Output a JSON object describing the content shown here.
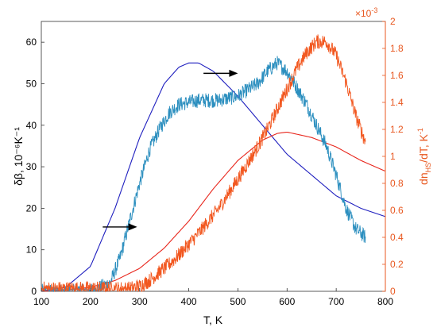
{
  "chart_data": {
    "type": "line",
    "xlabel": "T, K",
    "ylabel_left": "δβ, 10⁻⁶K⁻¹",
    "ylabel_right": "dn_HS/dT, K⁻¹",
    "ylabel_right_main": "dn",
    "ylabel_right_sub": "HS",
    "ylabel_right_tail": "/dT, K",
    "ylabel_right_sup": "-1",
    "right_axis_multiplier": "×10",
    "right_axis_multiplier_exp": "-3",
    "xlim": [
      100,
      800
    ],
    "ylim_left": [
      0,
      65
    ],
    "ylim_right": [
      0,
      2
    ],
    "x_ticks": [
      "100",
      "200",
      "300",
      "400",
      "500",
      "600",
      "700",
      "800"
    ],
    "y_left_ticks": [
      "0",
      "10",
      "20",
      "30",
      "40",
      "50",
      "60"
    ],
    "y_right_ticks": [
      "0",
      "0.2",
      "0.4",
      "0.6",
      "0.8",
      "1",
      "1.2",
      "1.4",
      "1.6",
      "1.8",
      "2"
    ],
    "colors": {
      "measured_dbeta": "#2c8fbf",
      "measured_dn": "#f2571f",
      "model_dbeta": "#1f1fbf",
      "model_dn": "#e8261c",
      "right_axis": "#e8571f",
      "arrow": "#000000"
    },
    "series": [
      {
        "axis": "left",
        "style": "noisy",
        "x": [
          100,
          200,
          240,
          260,
          280,
          300,
          320,
          340,
          360,
          380,
          400,
          420,
          440,
          460,
          480,
          500,
          520,
          540,
          560,
          580,
          600,
          620,
          640,
          660,
          680,
          700,
          720,
          740,
          760
        ],
        "y": [
          0,
          0,
          2,
          8,
          17,
          26,
          34,
          39,
          43,
          45,
          45.5,
          46,
          46,
          46,
          46.5,
          47,
          48.5,
          50,
          53,
          55,
          53,
          49,
          45,
          40,
          35,
          28,
          20,
          15,
          13
        ]
      },
      {
        "axis": "right",
        "style": "noisy",
        "x": [
          100,
          280,
          300,
          320,
          340,
          360,
          380,
          400,
          420,
          440,
          460,
          480,
          500,
          520,
          540,
          560,
          580,
          600,
          620,
          640,
          660,
          680,
          700,
          720,
          740,
          760
        ],
        "y": [
          0.02,
          0.02,
          0.04,
          0.08,
          0.14,
          0.2,
          0.27,
          0.35,
          0.43,
          0.52,
          0.61,
          0.72,
          0.83,
          0.95,
          1.07,
          1.2,
          1.35,
          1.5,
          1.65,
          1.77,
          1.85,
          1.85,
          1.75,
          1.55,
          1.3,
          1.1
        ]
      },
      {
        "axis": "left",
        "style": "smooth",
        "x": [
          100,
          150,
          200,
          250,
          300,
          350,
          380,
          400,
          420,
          450,
          500,
          550,
          600,
          650,
          700,
          750,
          800
        ],
        "y": [
          0,
          1,
          6,
          20,
          37,
          50,
          54,
          55,
          55,
          53,
          47,
          40,
          33,
          28,
          23,
          20,
          18
        ]
      },
      {
        "axis": "right",
        "style": "smooth",
        "x": [
          100,
          150,
          200,
          250,
          300,
          350,
          400,
          450,
          500,
          550,
          580,
          600,
          650,
          700,
          750,
          800
        ],
        "y": [
          0,
          0.01,
          0.03,
          0.08,
          0.17,
          0.32,
          0.52,
          0.76,
          0.97,
          1.12,
          1.17,
          1.18,
          1.14,
          1.07,
          0.97,
          0.89
        ]
      }
    ],
    "arrows": [
      {
        "axis": "left",
        "x1": 430,
        "x2": 500,
        "y": 52.5
      },
      {
        "axis": "left",
        "x1": 225,
        "x2": 295,
        "y": 15.5
      }
    ]
  }
}
